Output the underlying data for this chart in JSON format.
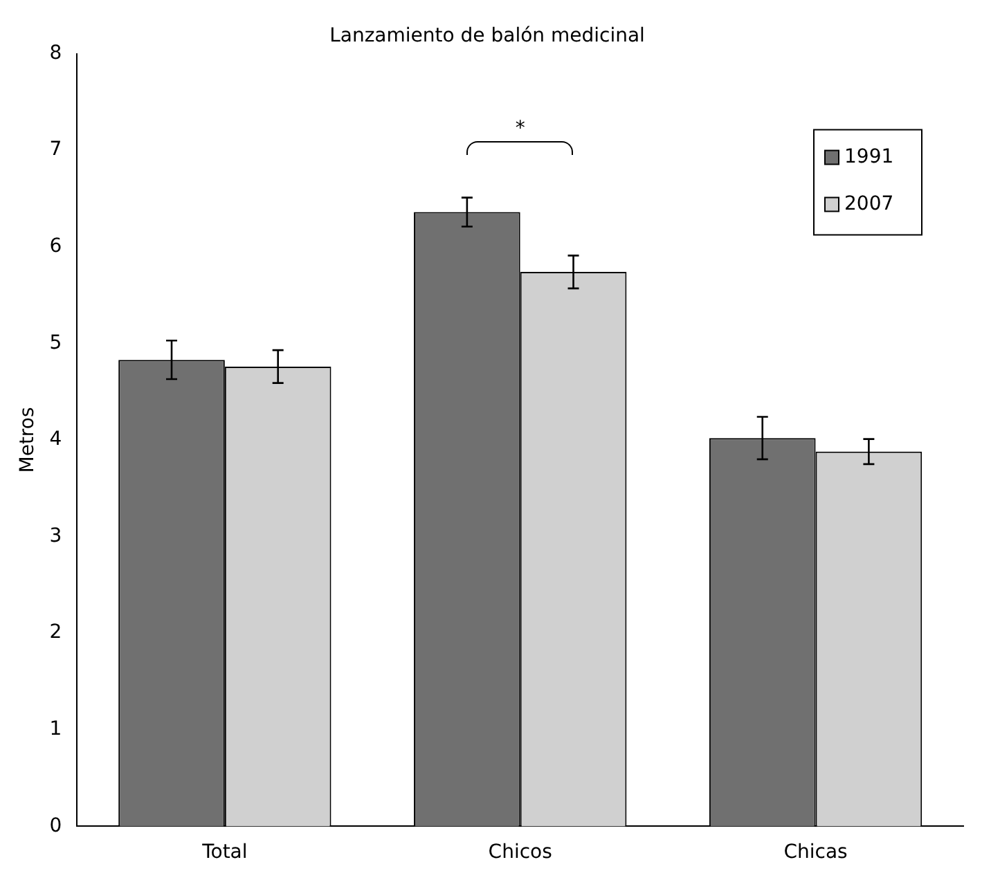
{
  "chart_data": {
    "type": "bar",
    "title": "Lanzamiento de balón medicinal",
    "ylabel": "Metros",
    "categories": [
      "Total",
      "Chicos",
      "Chicas"
    ],
    "series": [
      {
        "name": "1991",
        "color": "#707070",
        "values": [
          4.83,
          6.36,
          4.02
        ],
        "errors": [
          0.2,
          0.15,
          0.22
        ]
      },
      {
        "name": "2007",
        "color": "#d0d0d0",
        "values": [
          4.76,
          5.74,
          3.88
        ],
        "errors": [
          0.17,
          0.17,
          0.13
        ]
      }
    ],
    "annotations": [
      "*"
    ],
    "ylim": [
      0,
      8
    ],
    "yticks": [
      0,
      1,
      2,
      3,
      4,
      5,
      6,
      7,
      8
    ],
    "grid": false,
    "legend": "top right"
  }
}
